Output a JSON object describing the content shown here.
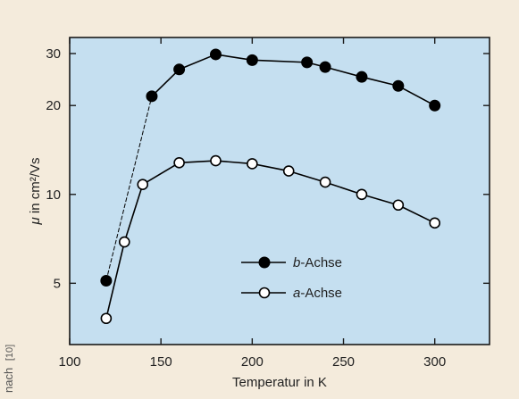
{
  "chart_data": {
    "type": "line",
    "ylabel": "μ in cm²/Vs",
    "xlabel": "Temperatur in K",
    "xlim": [
      100,
      330
    ],
    "ylim": [
      3.1,
      34
    ],
    "yscale": "log",
    "x_ticks": [
      100,
      150,
      200,
      250,
      300
    ],
    "y_ticks": [
      5,
      10,
      20,
      30
    ],
    "grid": false,
    "legend_position": "center",
    "series": [
      {
        "name": "b-Achse",
        "marker": "filled-circle",
        "color": "#000000",
        "x": [
          120,
          145,
          160,
          180,
          200,
          230,
          240,
          260,
          280,
          300
        ],
        "y": [
          5.1,
          21.5,
          26.5,
          29.8,
          28.5,
          28.0,
          27.0,
          25.0,
          23.3,
          20.0
        ],
        "note_dashed_segment": [
          120,
          145
        ]
      },
      {
        "name": "a-Achse",
        "marker": "open-circle",
        "color": "#000000",
        "x": [
          120,
          130,
          140,
          160,
          180,
          200,
          220,
          240,
          260,
          280,
          300
        ],
        "y": [
          3.8,
          6.9,
          10.8,
          12.8,
          13.0,
          12.7,
          12.0,
          11.0,
          10.0,
          9.2,
          8.0
        ]
      }
    ],
    "legend": [
      {
        "italic": "b",
        "rest": "-Achse"
      },
      {
        "italic": "a",
        "rest": "-Achse"
      }
    ]
  },
  "credit": "nach",
  "credit_ref": "[10]",
  "colors": {
    "page_background": "#f4ebdc",
    "plot_background": "#c5dff0",
    "border": "#1a1a1a"
  }
}
